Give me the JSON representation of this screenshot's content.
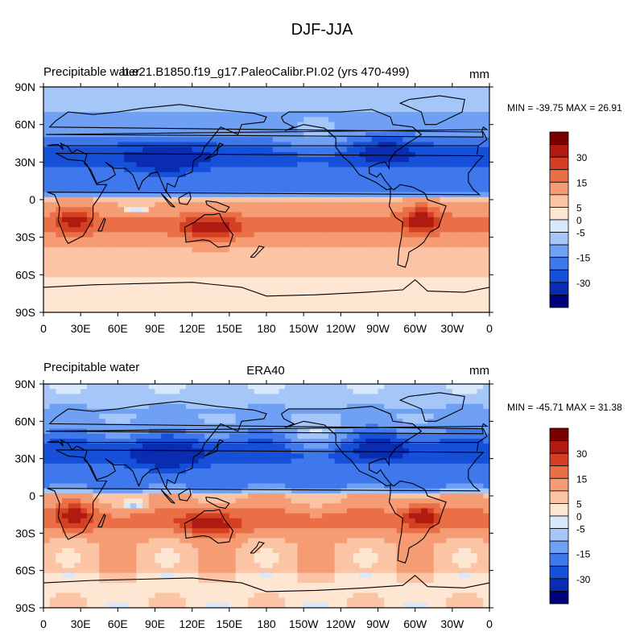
{
  "title": "DJF-JJA",
  "colors": {
    "levels": [
      "#00007a",
      "#0a2cb0",
      "#1650d8",
      "#3f78ec",
      "#6fa0f4",
      "#a4c6f8",
      "#d8e9fc",
      "#fde6d2",
      "#fbc4a4",
      "#f59c74",
      "#ea6e46",
      "#d44022",
      "#b01a10",
      "#7a0000"
    ],
    "labels_text": "#000000"
  },
  "colorbar": {
    "labels": [
      "30",
      "15",
      "5",
      "0",
      "-5",
      "-15",
      "-30"
    ],
    "level_values": [
      30,
      15,
      5,
      0,
      -5,
      -15,
      -30
    ]
  },
  "panels": [
    {
      "left_title": "Precipitable water",
      "center_title": "b.e21.B1850.f19_g17.PaleoCalibr.PI.02 (yrs 470-499)",
      "units": "mm",
      "stats": "MIN = -39.75 MAX =  26.91"
    },
    {
      "left_title": "Precipitable water",
      "center_title": "ERA40",
      "units": "mm",
      "stats": "MIN = -45.71 MAX =  31.38"
    }
  ],
  "chart_data": [
    {
      "type": "heatmap",
      "title": "Precipitable water — b.e21.B1850.f19_g17.PaleoCalibr.PI.02 (yrs 470-499)",
      "units": "mm",
      "min": -39.75,
      "max": 26.91,
      "xlabel": "",
      "ylabel": "",
      "x_ticks": [
        "0",
        "30E",
        "60E",
        "90E",
        "120E",
        "150E",
        "180",
        "150W",
        "120W",
        "90W",
        "60W",
        "30W",
        "0"
      ],
      "y_ticks": [
        "90N",
        "60N",
        "30N",
        "0",
        "30S",
        "60S",
        "90S"
      ],
      "contour_levels": [
        -30,
        -20,
        -15,
        -10,
        -5,
        -2,
        0,
        2,
        5,
        10,
        15,
        20,
        30
      ],
      "colorbar_labels": [
        "30",
        "15",
        "5",
        "0",
        "-5",
        "-15",
        "-30"
      ]
    },
    {
      "type": "heatmap",
      "title": "Precipitable water — ERA40",
      "units": "mm",
      "min": -45.71,
      "max": 31.38,
      "xlabel": "",
      "ylabel": "",
      "x_ticks": [
        "0",
        "30E",
        "60E",
        "90E",
        "120E",
        "150E",
        "180",
        "150W",
        "120W",
        "90W",
        "60W",
        "30W",
        "0"
      ],
      "y_ticks": [
        "90N",
        "60N",
        "30N",
        "0",
        "30S",
        "60S",
        "90S"
      ],
      "contour_levels": [
        -30,
        -20,
        -15,
        -10,
        -5,
        -2,
        0,
        2,
        5,
        10,
        15,
        20,
        30
      ],
      "colorbar_labels": [
        "30",
        "15",
        "5",
        "0",
        "-5",
        "-15",
        "-30"
      ]
    }
  ]
}
